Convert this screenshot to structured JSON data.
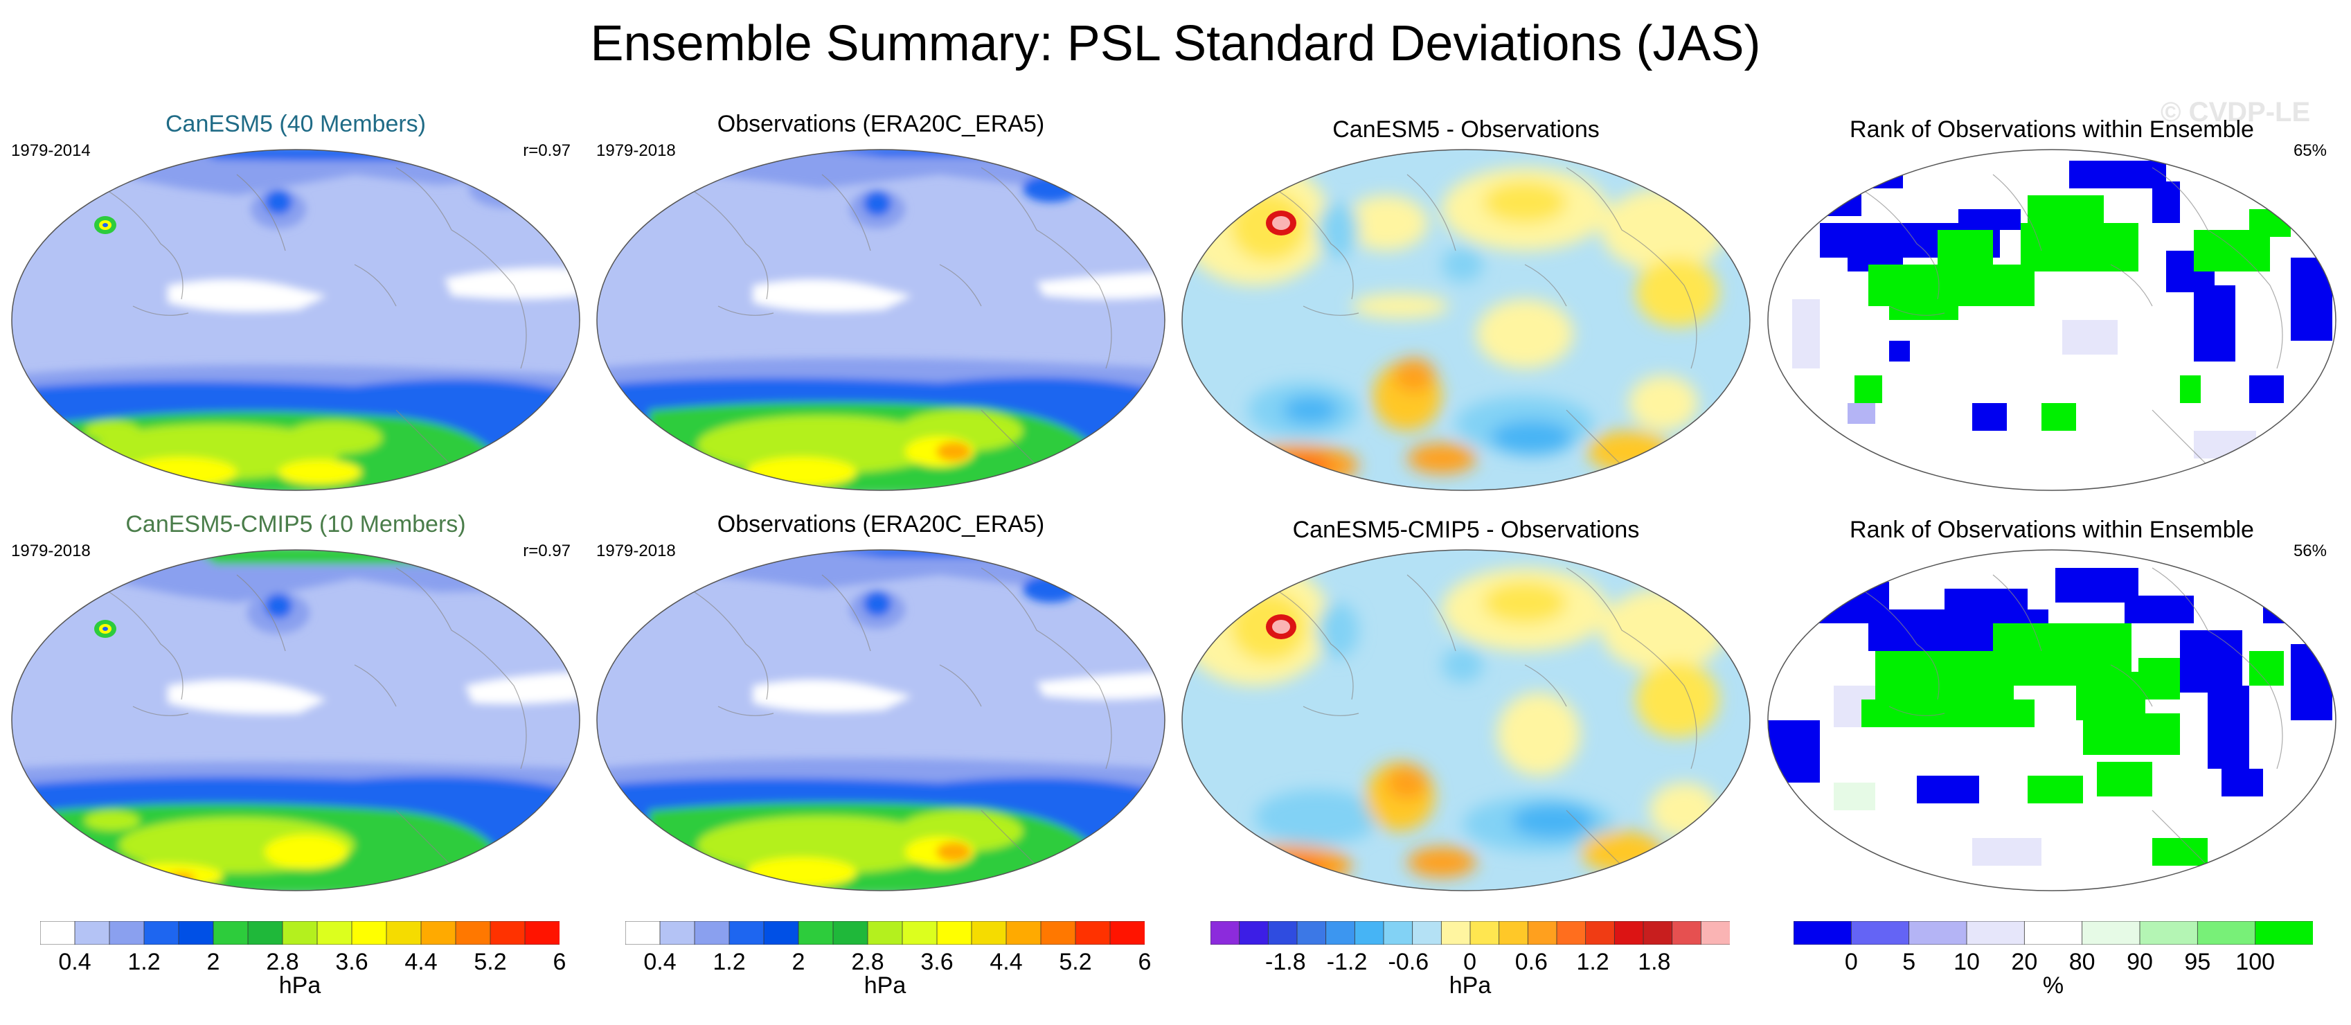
{
  "title": "Ensemble Summary: PSL Standard Deviations (JAS)",
  "watermark": "© CVDP-LE",
  "rows": [
    {
      "model_title": "CanESM5 (40 Members)",
      "model_years": "1979-2014",
      "model_r": "r=0.97",
      "obs_title": "Observations (ERA20C_ERA5)",
      "obs_years": "1979-2018",
      "diff_title": "CanESM5 - Observations",
      "rank_title": "Rank of Observations within Ensemble",
      "rank_pct": "65%"
    },
    {
      "model_title": "CanESM5-CMIP5 (10 Members)",
      "model_years": "1979-2018",
      "model_r": "r=0.97",
      "obs_title": "Observations (ERA20C_ERA5)",
      "obs_years": "1979-2018",
      "diff_title": "CanESM5-CMIP5 - Observations",
      "rank_title": "Rank of Observations within Ensemble",
      "rank_pct": "56%"
    }
  ],
  "chart_data": [
    {
      "type": "heatmap",
      "name": "PSL standard deviation colorbar",
      "unit": "hPa",
      "levels": [
        0.4,
        0.8,
        1.2,
        1.6,
        2,
        2.4,
        2.8,
        3.2,
        3.6,
        4.0,
        4.4,
        4.8,
        5.2,
        5.6,
        6
      ],
      "tick_labels": [
        "0.4",
        "1.2",
        "2",
        "2.8",
        "3.6",
        "4.4",
        "5.2",
        "6"
      ],
      "colors": [
        "#ffffff",
        "#b4c3f5",
        "#8aa0ef",
        "#1e66f0",
        "#0050e6",
        "#2dcc3c",
        "#1fb83a",
        "#b4f01e",
        "#dcff1e",
        "#ffff00",
        "#f5dc00",
        "#ffaa00",
        "#ff7800",
        "#ff3200",
        "#ff1400"
      ]
    },
    {
      "type": "heatmap",
      "name": "Model minus observations colorbar",
      "unit": "hPa",
      "levels": [
        -2.1,
        -1.8,
        -1.5,
        -1.2,
        -0.9,
        -0.6,
        -0.3,
        0,
        0.3,
        0.6,
        0.9,
        1.2,
        1.5,
        1.8,
        2.1
      ],
      "tick_labels": [
        "-1.8",
        "-1.2",
        "-0.6",
        "0",
        "0.6",
        "1.2",
        "1.8"
      ],
      "colors": [
        "#8c2bdc",
        "#3c1ee6",
        "#2f4ce0",
        "#3c78e6",
        "#3c96f0",
        "#46b4f5",
        "#82d2f5",
        "#b4e1f5",
        "#fff5a0",
        "#ffe650",
        "#ffc828",
        "#ffa01e",
        "#ff6e1e",
        "#f03c14",
        "#dc1414",
        "#c81e1e",
        "#e65050",
        "#fab4b4"
      ]
    },
    {
      "type": "heatmap",
      "name": "Rank colorbar",
      "unit": "%",
      "levels": [
        0,
        5,
        10,
        20,
        80,
        90,
        95,
        100
      ],
      "tick_labels": [
        "0",
        "5",
        "10",
        "20",
        "80",
        "90",
        "95",
        "100"
      ],
      "colors": [
        "#0000f0",
        "#6464f5",
        "#b4b4f5",
        "#e6e6fa",
        "#ffffff",
        "#e6fae6",
        "#b4f5b4",
        "#78f078",
        "#00f000"
      ]
    }
  ]
}
